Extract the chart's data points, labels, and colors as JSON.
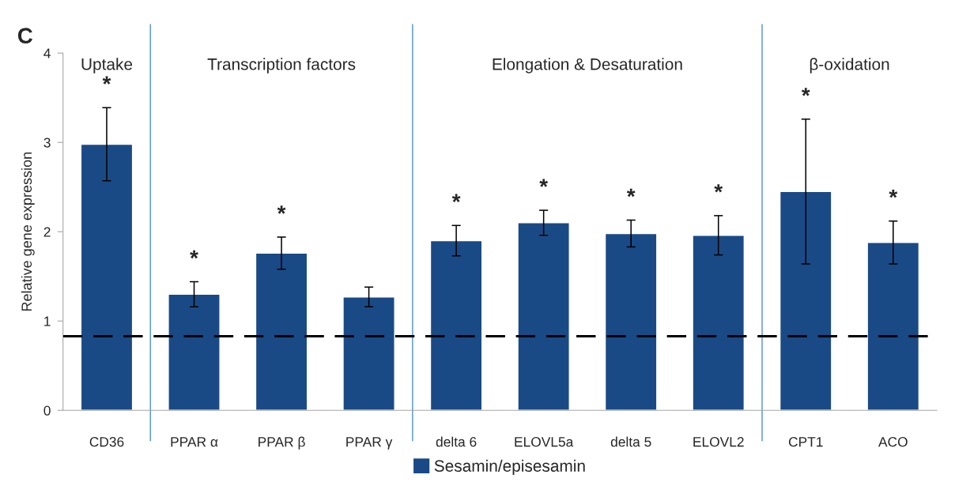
{
  "chart_data": {
    "type": "bar",
    "title": "C",
    "ylabel": "Relative gene expression",
    "categories": [
      "CD36",
      "PPAR α",
      "PPAR β",
      "PPAR γ",
      "delta 6",
      "ELOVL5a",
      "delta 5",
      "ELOVL2",
      "CPT1",
      "ACO"
    ],
    "series": [
      {
        "name": "Sesamin/episesamin",
        "color": "#1a4a86",
        "values": [
          2.98,
          1.3,
          1.76,
          1.27,
          1.9,
          2.1,
          1.98,
          1.96,
          2.45,
          1.88
        ],
        "errors": [
          0.41,
          0.14,
          0.18,
          0.11,
          0.17,
          0.14,
          0.15,
          0.22,
          0.81,
          0.24
        ]
      }
    ],
    "ylim": [
      0,
      4
    ],
    "yticks": [
      0,
      1,
      2,
      3,
      4
    ],
    "legend": "bottom",
    "ref_lines": [
      {
        "axis": "y",
        "value": 0.83,
        "color": "#000000",
        "line_style": "dashed"
      }
    ],
    "annotations": [
      "Uptake",
      "Transcription factors",
      "Elongation & Desaturation",
      "β-oxidation",
      "*",
      "*",
      "*",
      "*",
      "*",
      "*",
      "*",
      "*",
      "*"
    ]
  }
}
